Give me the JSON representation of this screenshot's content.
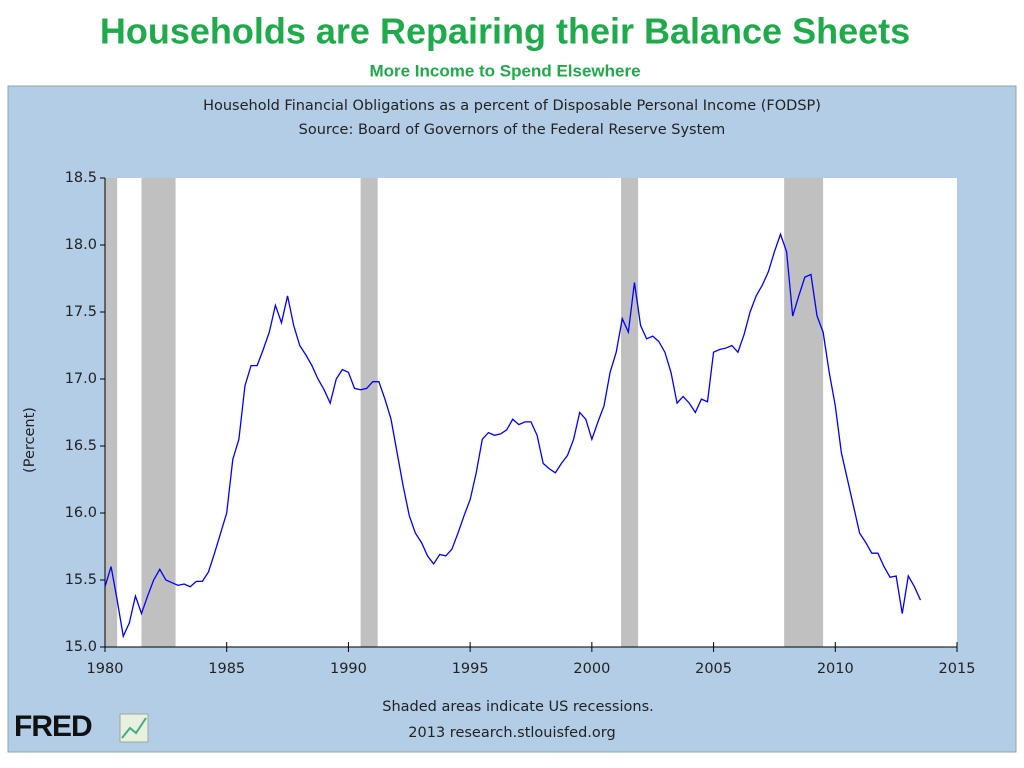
{
  "slide": {
    "title": "Households are Repairing their Balance Sheets",
    "subtitle": "More Income to Spend Elsewhere"
  },
  "chart_data": {
    "type": "line",
    "title": [
      "Household Financial Obligations as a percent of Disposable Personal Income (FODSP)",
      "Source: Board of Governors of the Federal Reserve System"
    ],
    "ylabel": "(Percent)",
    "footer": [
      "Shaded areas indicate US recessions.",
      "2013 research.stlouisfed.org"
    ],
    "logo": "FRED",
    "xlim": [
      1980,
      2015
    ],
    "xticks": [
      1980,
      1985,
      1990,
      1995,
      2000,
      2005,
      2010,
      2015
    ],
    "ylim": [
      15,
      18.5
    ],
    "yticks": [
      {
        "value": 15,
        "label": "15.0"
      },
      15.5,
      {
        "value": 16,
        "label": "16.0"
      },
      16.5,
      {
        "value": 17,
        "label": "17.0"
      },
      17.5,
      {
        "value": 18,
        "label": "18.0"
      },
      18.5
    ],
    "recessions": [
      [
        1980.0,
        1980.5
      ],
      [
        1981.5,
        1982.9
      ],
      [
        1990.5,
        1991.2
      ],
      [
        2001.2,
        2001.9
      ],
      [
        2007.9,
        2009.5
      ]
    ],
    "recession_color": "#c0c0c0",
    "x": [
      1980,
      1980.25,
      1980.5,
      1980.75,
      1981,
      1981.25,
      1981.5,
      1981.75,
      1982,
      1982.25,
      1982.5,
      1982.75,
      1983,
      1983.25,
      1983.5,
      1983.75,
      1984,
      1984.25,
      1984.5,
      1984.75,
      1985,
      1985.25,
      1985.5,
      1985.75,
      1986,
      1986.25,
      1986.5,
      1986.75,
      1987,
      1987.25,
      1987.5,
      1987.75,
      1988,
      1988.25,
      1988.5,
      1988.75,
      1989,
      1989.25,
      1989.5,
      1989.75,
      1990,
      1990.25,
      1990.5,
      1990.75,
      1991,
      1991.25,
      1991.5,
      1991.75,
      1992,
      1992.25,
      1992.5,
      1992.75,
      1993,
      1993.25,
      1993.5,
      1993.75,
      1994,
      1994.25,
      1994.5,
      1994.75,
      1995,
      1995.25,
      1995.5,
      1995.75,
      1996,
      1996.25,
      1996.5,
      1996.75,
      1997,
      1997.25,
      1997.5,
      1997.75,
      1998,
      1998.25,
      1998.5,
      1998.75,
      1999,
      1999.25,
      1999.5,
      1999.75,
      2000,
      2000.25,
      2000.5,
      2000.75,
      2001,
      2001.25,
      2001.5,
      2001.75,
      2002,
      2002.25,
      2002.5,
      2002.75,
      2003,
      2003.25,
      2003.5,
      2003.75,
      2004,
      2004.25,
      2004.5,
      2004.75,
      2005,
      2005.25,
      2005.5,
      2005.75,
      2006,
      2006.25,
      2006.5,
      2006.75,
      2007,
      2007.25,
      2007.5,
      2007.75,
      2008,
      2008.25,
      2008.5,
      2008.75,
      2009,
      2009.25,
      2009.5,
      2009.75,
      2010,
      2010.25,
      2010.5,
      2010.75,
      2011,
      2011.25,
      2011.5,
      2011.75,
      2012,
      2012.25,
      2012.5,
      2012.75,
      2013,
      2013.25,
      2013.5
    ],
    "series": [
      {
        "name": "FODSP",
        "color": "#0000ff",
        "values": [
          15.45,
          15.6,
          15.35,
          15.08,
          15.18,
          15.38,
          15.25,
          15.38,
          15.5,
          15.58,
          15.5,
          15.48,
          15.46,
          15.47,
          15.45,
          15.49,
          15.49,
          15.56,
          15.7,
          15.85,
          16.0,
          16.4,
          16.55,
          16.95,
          17.1,
          17.1,
          17.22,
          17.35,
          17.55,
          17.42,
          17.62,
          17.4,
          17.25,
          17.18,
          17.1,
          17.0,
          16.92,
          16.82,
          17.0,
          17.07,
          17.05,
          16.93,
          16.92,
          16.93,
          16.98,
          16.98,
          16.85,
          16.7,
          16.45,
          16.2,
          15.98,
          15.85,
          15.78,
          15.68,
          15.62,
          15.69,
          15.68,
          15.73,
          15.85,
          15.98,
          16.1,
          16.3,
          16.55,
          16.6,
          16.58,
          16.59,
          16.62,
          16.7,
          16.66,
          16.68,
          16.68,
          16.58,
          16.37,
          16.33,
          16.3,
          16.37,
          16.43,
          16.55,
          16.75,
          16.7,
          16.55,
          16.68,
          16.8,
          17.05,
          17.2,
          17.45,
          17.35,
          17.72,
          17.4,
          17.3,
          17.32,
          17.28,
          17.2,
          17.05,
          16.82,
          16.87,
          16.82,
          16.75,
          16.85,
          16.83,
          17.2,
          17.22,
          17.23,
          17.25,
          17.2,
          17.33,
          17.5,
          17.62,
          17.7,
          17.8,
          17.95,
          18.08,
          17.95,
          17.47,
          17.62,
          17.76,
          17.78,
          17.47,
          17.35,
          17.05,
          16.8,
          16.45,
          16.25,
          16.05,
          15.85,
          15.78,
          15.7,
          15.7,
          15.6,
          15.52,
          15.53,
          15.25,
          15.53,
          15.45,
          15.35
        ]
      }
    ]
  }
}
